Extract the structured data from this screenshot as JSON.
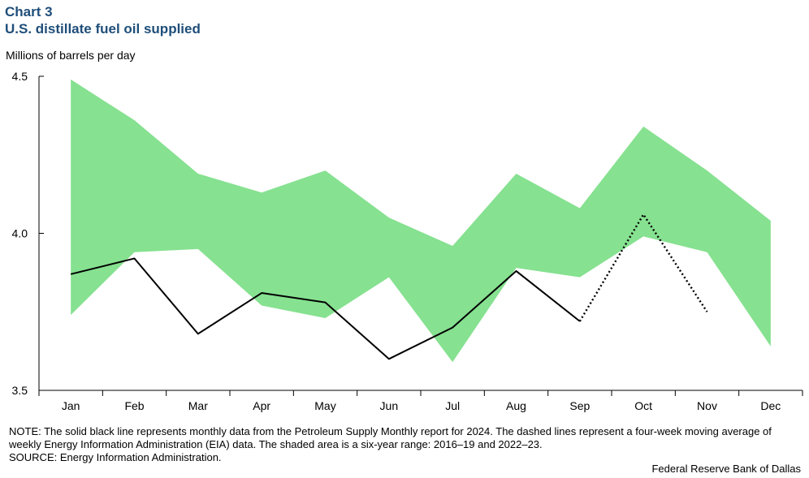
{
  "header": {
    "chart_number": "Chart 3",
    "title": "U.S. distillate fuel oil supplied"
  },
  "units_label": "Millions of barrels per day",
  "chart_data": {
    "type": "line",
    "title": "U.S. distillate fuel oil supplied",
    "ylabel": "Millions of barrels per day",
    "ylim": [
      3.5,
      4.5
    ],
    "y_ticks": [
      "3.5",
      "4.0",
      "4.5"
    ],
    "y_tick_values": [
      3.5,
      4.0,
      4.5
    ],
    "categories": [
      "Jan",
      "Feb",
      "Mar",
      "Apr",
      "May",
      "Jun",
      "Jul",
      "Aug",
      "Sep",
      "Oct",
      "Nov",
      "Dec"
    ],
    "range_band": {
      "upper": [
        4.49,
        4.36,
        4.19,
        4.13,
        4.2,
        4.05,
        3.96,
        4.19,
        4.08,
        4.34,
        4.2,
        4.04
      ],
      "lower": [
        3.74,
        3.94,
        3.95,
        3.77,
        3.73,
        3.86,
        3.59,
        3.89,
        3.86,
        3.99,
        3.94,
        3.64
      ],
      "color": "#86e190"
    },
    "series": [
      {
        "style": "solid",
        "color": "#000000",
        "values": [
          3.87,
          3.92,
          3.68,
          3.81,
          3.78,
          3.6,
          3.7,
          3.88,
          3.72,
          null,
          null,
          null
        ]
      },
      {
        "style": "dotted",
        "color": "#000000",
        "values": [
          null,
          null,
          null,
          null,
          null,
          null,
          null,
          null,
          3.72,
          4.06,
          3.75,
          null
        ]
      }
    ],
    "grid": false,
    "legend": "none"
  },
  "note": "NOTE: The solid black line represents monthly data from the Petroleum Supply Monthly report for 2024. The dashed lines represent a four-week moving average of weekly Energy Information Administration (EIA) data. The shaded area is a six-year range: 2016–19 and 2022–23.",
  "source": "SOURCE: Energy Information Administration.",
  "credit": "Federal Reserve Bank of Dallas"
}
